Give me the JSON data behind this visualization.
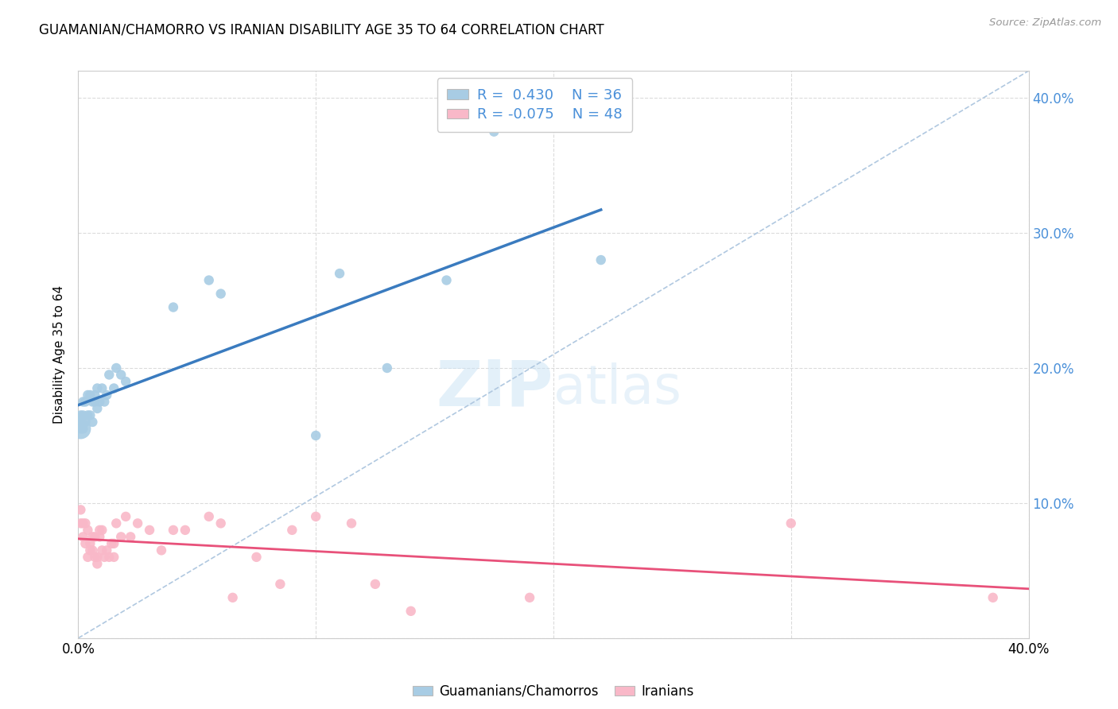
{
  "title": "GUAMANIAN/CHAMORRO VS IRANIAN DISABILITY AGE 35 TO 64 CORRELATION CHART",
  "source": "Source: ZipAtlas.com",
  "ylabel": "Disability Age 35 to 64",
  "xlim": [
    0.0,
    0.4
  ],
  "ylim": [
    0.0,
    0.42
  ],
  "x_ticks": [
    0.0,
    0.1,
    0.2,
    0.3,
    0.4
  ],
  "x_tick_labels": [
    "0.0%",
    "",
    "",
    "",
    "40.0%"
  ],
  "y_ticks_right": [
    0.0,
    0.1,
    0.2,
    0.3,
    0.4
  ],
  "y_tick_labels_right": [
    "",
    "10.0%",
    "20.0%",
    "30.0%",
    "40.0%"
  ],
  "guamanian_color": "#a8cce4",
  "iranian_color": "#f9b8c8",
  "trend_guamanian_color": "#3a7bbf",
  "trend_iranian_color": "#e8517a",
  "diagonal_color": "#b0c8e0",
  "R_guamanian": 0.43,
  "N_guamanian": 36,
  "R_iranian": -0.075,
  "N_iranian": 48,
  "guamanian_x": [
    0.001,
    0.001,
    0.001,
    0.002,
    0.002,
    0.002,
    0.003,
    0.003,
    0.004,
    0.004,
    0.005,
    0.005,
    0.006,
    0.006,
    0.007,
    0.007,
    0.008,
    0.008,
    0.009,
    0.01,
    0.011,
    0.012,
    0.013,
    0.015,
    0.016,
    0.018,
    0.02,
    0.04,
    0.055,
    0.06,
    0.1,
    0.11,
    0.13,
    0.155,
    0.175,
    0.22
  ],
  "guamanian_y": [
    0.155,
    0.16,
    0.165,
    0.155,
    0.165,
    0.175,
    0.16,
    0.175,
    0.165,
    0.18,
    0.165,
    0.18,
    0.16,
    0.175,
    0.175,
    0.18,
    0.17,
    0.185,
    0.175,
    0.185,
    0.175,
    0.18,
    0.195,
    0.185,
    0.2,
    0.195,
    0.19,
    0.245,
    0.265,
    0.255,
    0.15,
    0.27,
    0.2,
    0.265,
    0.375,
    0.28
  ],
  "iranian_x": [
    0.001,
    0.001,
    0.002,
    0.002,
    0.003,
    0.003,
    0.004,
    0.004,
    0.005,
    0.005,
    0.006,
    0.006,
    0.007,
    0.007,
    0.008,
    0.008,
    0.009,
    0.009,
    0.01,
    0.01,
    0.011,
    0.012,
    0.013,
    0.014,
    0.015,
    0.015,
    0.016,
    0.018,
    0.02,
    0.022,
    0.025,
    0.03,
    0.035,
    0.04,
    0.045,
    0.055,
    0.06,
    0.065,
    0.075,
    0.085,
    0.09,
    0.1,
    0.115,
    0.125,
    0.14,
    0.19,
    0.3,
    0.385
  ],
  "iranian_y": [
    0.095,
    0.085,
    0.085,
    0.075,
    0.085,
    0.07,
    0.08,
    0.06,
    0.065,
    0.07,
    0.075,
    0.065,
    0.075,
    0.06,
    0.06,
    0.055,
    0.075,
    0.08,
    0.065,
    0.08,
    0.06,
    0.065,
    0.06,
    0.07,
    0.06,
    0.07,
    0.085,
    0.075,
    0.09,
    0.075,
    0.085,
    0.08,
    0.065,
    0.08,
    0.08,
    0.09,
    0.085,
    0.03,
    0.06,
    0.04,
    0.08,
    0.09,
    0.085,
    0.04,
    0.02,
    0.03,
    0.085,
    0.03
  ],
  "watermark_zip": "ZIP",
  "watermark_atlas": "atlas",
  "background_color": "#ffffff",
  "title_fontsize": 12,
  "axis_label_color": "#4a90d9",
  "legend_text_color": "#4a90d9"
}
